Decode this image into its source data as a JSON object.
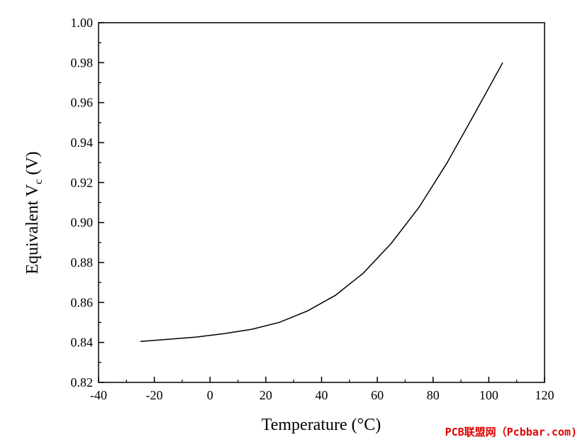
{
  "chart_data": {
    "type": "line",
    "xlabel": "Temperature (°C)",
    "ylabel_main": "Equivalent V",
    "ylabel_sub": "c",
    "ylabel_unit": " (V)",
    "xlim": [
      -40,
      120
    ],
    "ylim": [
      0.82,
      1.0
    ],
    "xticks": [
      -40,
      -20,
      0,
      20,
      40,
      60,
      80,
      100,
      120
    ],
    "yticks": [
      0.82,
      0.84,
      0.86,
      0.88,
      0.9,
      0.92,
      0.94,
      0.96,
      0.98,
      1.0
    ],
    "grid": false,
    "line_color": "#000000",
    "series": [
      {
        "x": [
          -25,
          -15,
          -5,
          5,
          15,
          25,
          35,
          45,
          55,
          65,
          75,
          85,
          95,
          105
        ],
        "y": [
          0.8405,
          0.8416,
          0.8427,
          0.8444,
          0.8466,
          0.8501,
          0.8558,
          0.8636,
          0.8747,
          0.8896,
          0.9077,
          0.9298,
          0.9547,
          0.98
        ]
      }
    ]
  },
  "watermark": "PCB联盟网（Pcbbar.com)"
}
